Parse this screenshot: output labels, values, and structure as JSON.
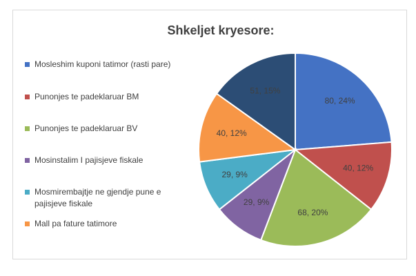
{
  "chart_data": {
    "type": "pie",
    "title": "Shkeljet kryesore:",
    "categories": [
      "Mosleshim kuponi tatimor (rasti pare)",
      "Punonjes te padeklaruar BM",
      "Punonjes te padeklaruar BV",
      "Mosinstalim I pajisjeve fiskale",
      "Mosmirembajtje ne gjendje pune e pajisjeve fiskale",
      "Mall pa fature tatimore",
      null
    ],
    "values": [
      80,
      40,
      68,
      29,
      29,
      40,
      51
    ],
    "value_labels": [
      "80, 24%",
      "40, 12%",
      "68, 20%",
      "29, 9%",
      "29, 9%",
      "40, 12%",
      "51, 15%"
    ],
    "colors": [
      "#4472c4",
      "#c0504d",
      "#9bbb59",
      "#8064a2",
      "#4bacc6",
      "#f79646",
      "#2c4d75"
    ],
    "legend": "left"
  }
}
